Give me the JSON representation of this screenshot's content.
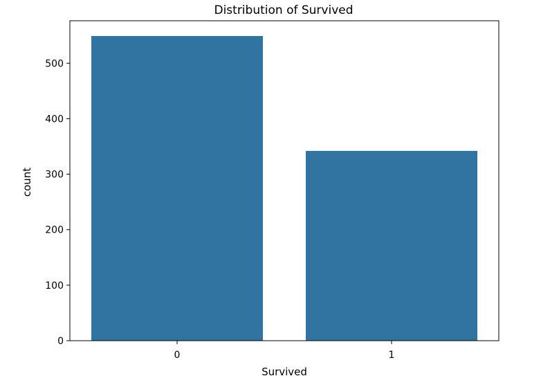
{
  "chart_data": {
    "type": "bar",
    "title": "Distribution of Survived",
    "xlabel": "Survived",
    "ylabel": "count",
    "categories": [
      "0",
      "1"
    ],
    "values": [
      549,
      342
    ],
    "ylim": [
      0,
      576.45
    ],
    "yticks": [
      0,
      100,
      200,
      300,
      400,
      500
    ],
    "bar_color": "#3274a1",
    "grid": false,
    "legend": "none"
  }
}
